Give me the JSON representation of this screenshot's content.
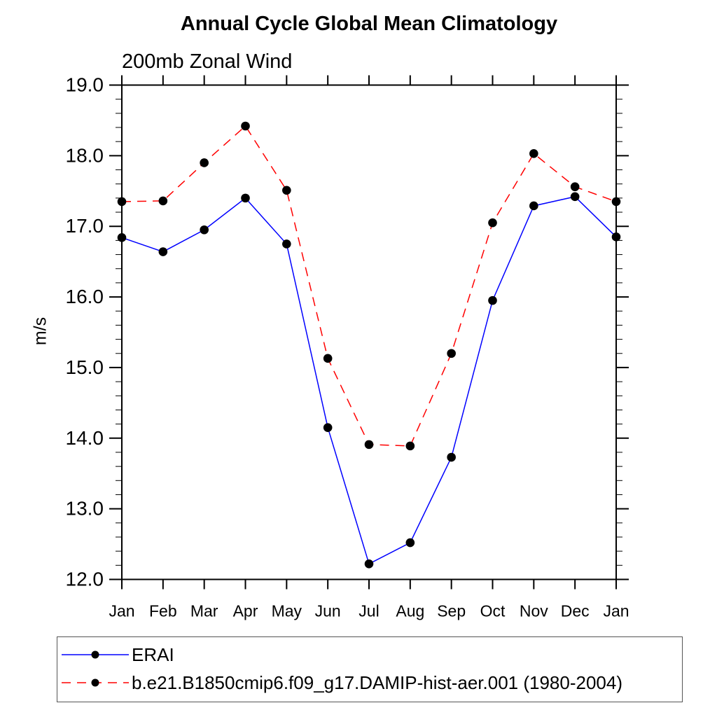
{
  "title": "Annual Cycle Global Mean Climatology",
  "subtitle": "200mb Zonal Wind",
  "chart_data": {
    "type": "line",
    "x": [
      "Jan",
      "Feb",
      "Mar",
      "Apr",
      "May",
      "Jun",
      "Jul",
      "Aug",
      "Sep",
      "Oct",
      "Nov",
      "Dec",
      "Jan"
    ],
    "xlabel": "",
    "ylabel": "m/s",
    "ylim": [
      12.0,
      19.0
    ],
    "ytick_major": 1.0,
    "ytick_minor": 0.2,
    "grid": false,
    "legend_position": "bottom-left-box",
    "series": [
      {
        "name": "ERAI",
        "color": "#0000ff",
        "line_style": "solid",
        "marker": "filled-circle",
        "marker_color": "#000000",
        "values": [
          16.84,
          16.64,
          16.95,
          17.4,
          16.75,
          14.15,
          12.22,
          12.52,
          13.73,
          15.95,
          17.29,
          17.42,
          16.85
        ]
      },
      {
        "name": "b.e21.B1850cmip6.f09_g17.DAMIP-hist-aer.001 (1980-2004)",
        "color": "#ff0000",
        "line_style": "dashed",
        "marker": "filled-circle",
        "marker_color": "#000000",
        "values": [
          17.35,
          17.36,
          17.9,
          18.42,
          17.51,
          15.13,
          13.91,
          13.89,
          15.2,
          17.05,
          18.03,
          17.56,
          17.35
        ]
      }
    ]
  }
}
